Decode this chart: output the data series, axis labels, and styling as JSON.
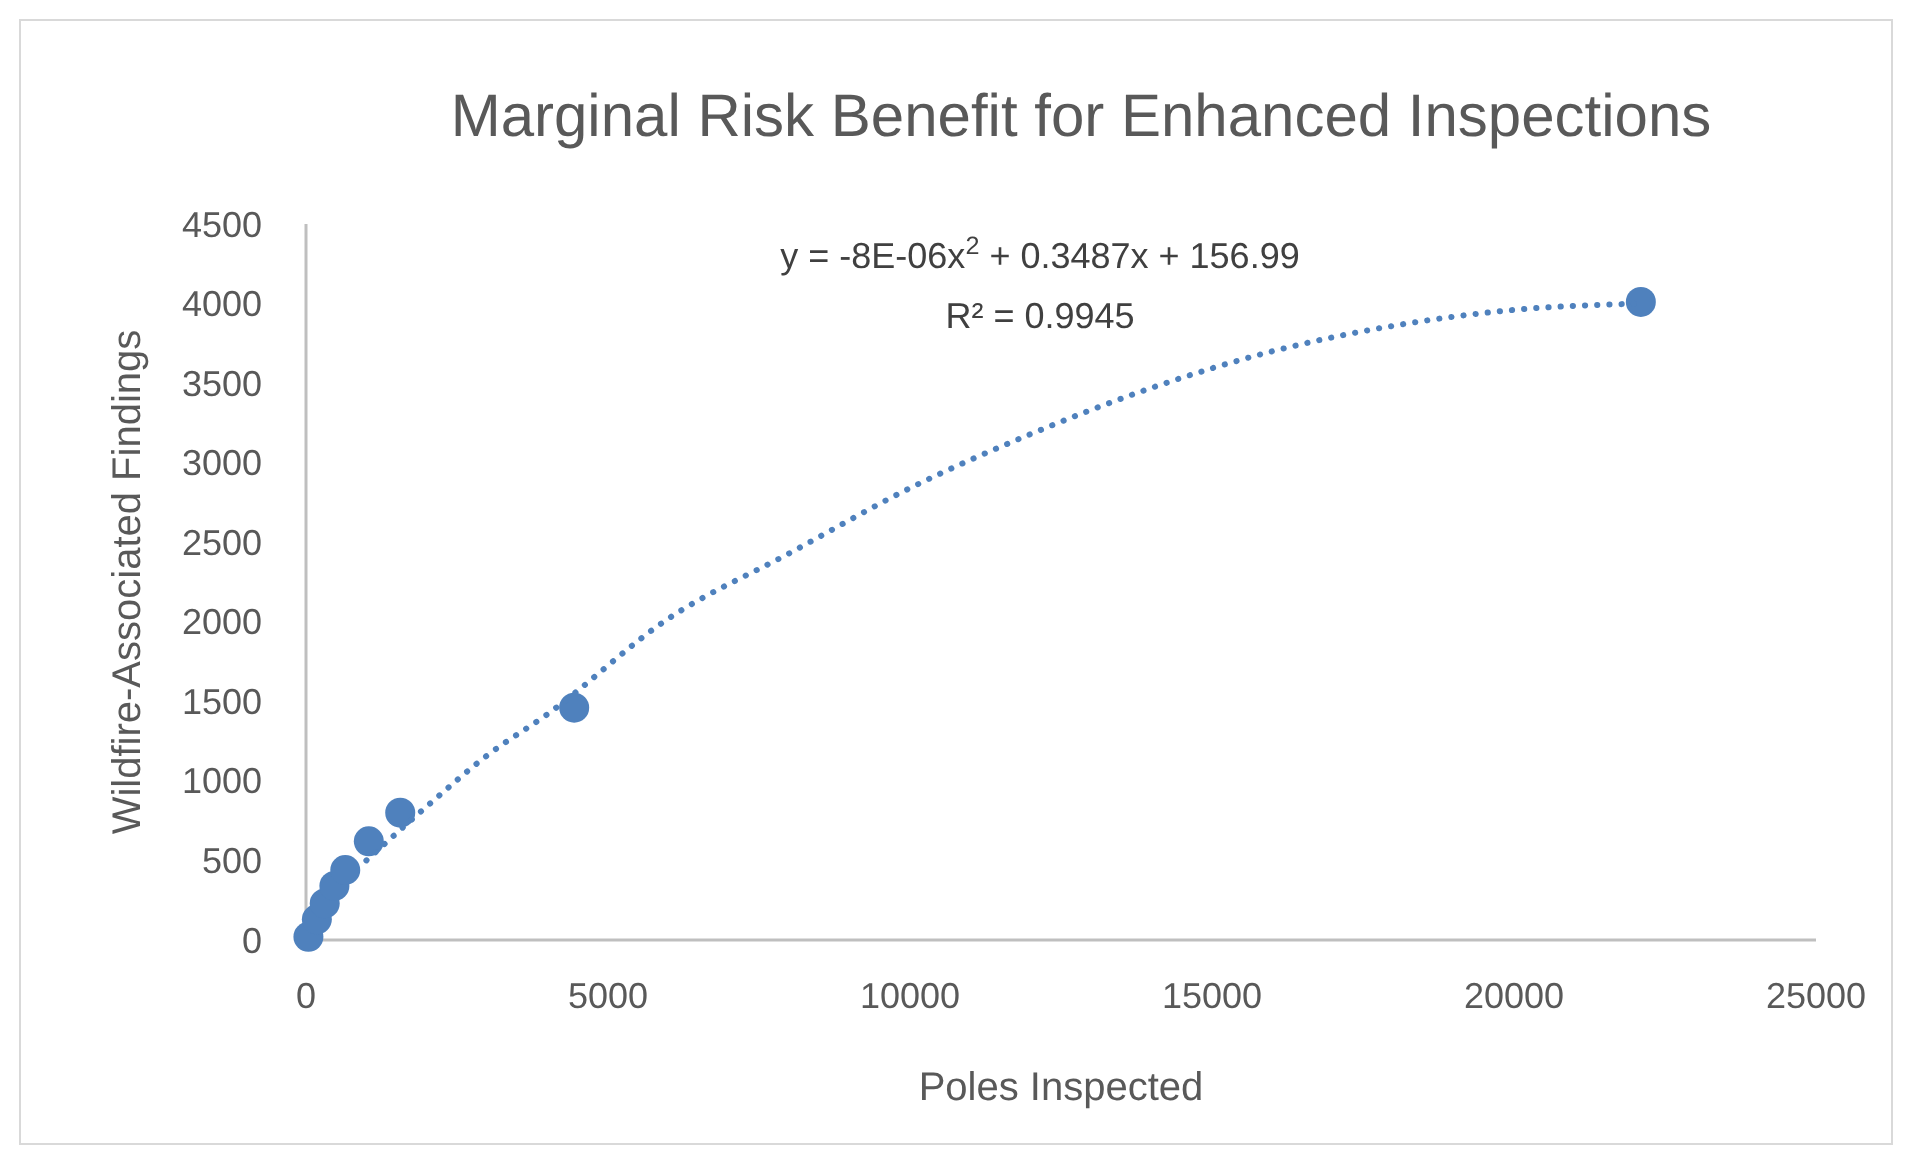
{
  "chart_data": {
    "type": "scatter",
    "title": "Marginal Risk Benefit for Enhanced Inspections",
    "xlabel": "Poles Inspected",
    "ylabel": "Wildfire-Associated Findings",
    "xlim": [
      0,
      25000
    ],
    "xticks": [
      0,
      5000,
      10000,
      15000,
      20000,
      25000
    ],
    "ylim": [
      0,
      4500
    ],
    "yticks": [
      0,
      500,
      1000,
      1500,
      2000,
      2500,
      3000,
      3500,
      4000,
      4500
    ],
    "grid": false,
    "annotations": [
      "y = -8E-06x$^{2}$ + 0.3487x + 156.99",
      "R² = 0.9945"
    ],
    "series": [
      {
        "color": "#4f81bd",
        "marker": "circle",
        "x": [
          40,
          180,
          310,
          470,
          650,
          1040,
          1560,
          4440,
          22100
        ],
        "values": [
          20,
          130,
          230,
          340,
          440,
          620,
          800,
          1460,
          4010
        ]
      },
      {
        "type": "line",
        "color": "#4f81bd",
        "line_style": "dotted",
        "marker": "none",
        "x": [
          1000,
          2000,
          3000,
          4000,
          6000,
          8000,
          10000,
          12000,
          14000,
          16000,
          18000,
          20000,
          22100
        ],
        "values": [
          500,
          840,
          1160,
          1420,
          2020,
          2430,
          2840,
          3180,
          3470,
          3700,
          3860,
          3960,
          4000
        ]
      }
    ]
  }
}
